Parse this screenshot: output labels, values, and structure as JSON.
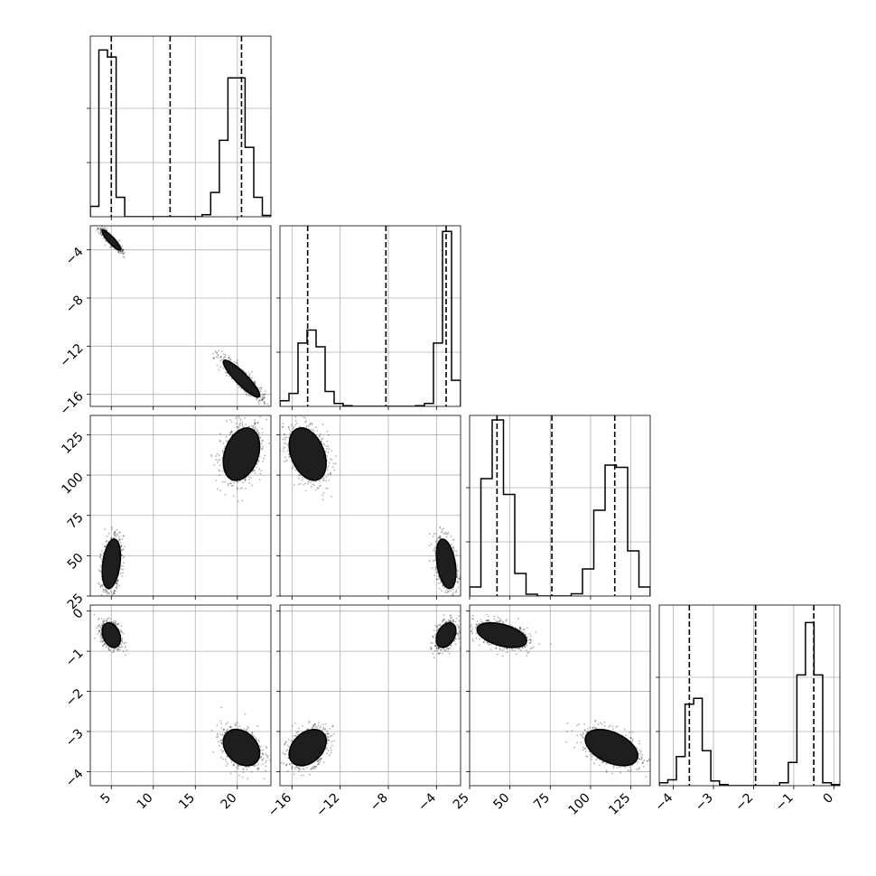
{
  "chart_data": {
    "type": "corner",
    "grid": true,
    "params": [
      {
        "range": [
          2.5,
          24.0
        ],
        "ticks": [
          5,
          10,
          15,
          20
        ],
        "tick_labels": [
          "5",
          "10",
          "15",
          "20"
        ],
        "quantiles": [
          5.0,
          12.0,
          20.5
        ],
        "hist": [
          0.15,
          2.4,
          2.3,
          0.28,
          0,
          0,
          0,
          0,
          0,
          0,
          0,
          0,
          0,
          0.03,
          0.35,
          1.1,
          2.0,
          2.0,
          1.0,
          0.28,
          0.02
        ],
        "hist_ylim": [
          0,
          2.6
        ]
      },
      {
        "range": [
          -17,
          -2.0
        ],
        "ticks": [
          -16,
          -12,
          -8,
          -4
        ],
        "tick_labels": [
          "−16",
          "−12",
          "−8",
          "−4"
        ],
        "quantiles": [
          -14.7,
          -8.2,
          -3.2
        ],
        "hist": [
          0.15,
          0.35,
          1.7,
          2.05,
          1.6,
          0.4,
          0.08,
          0.02,
          0,
          0,
          0,
          0,
          0,
          0,
          0,
          0.02,
          0.08,
          1.7,
          4.7,
          0.7
        ],
        "hist_ylim": [
          0,
          4.85
        ]
      },
      {
        "range": [
          25,
          137
        ],
        "ticks": [
          25,
          50,
          75,
          100,
          125
        ],
        "tick_labels": [
          "25",
          "50",
          "75",
          "100",
          "125"
        ],
        "quantiles": [
          42,
          76,
          115
        ],
        "hist": [
          0.2,
          2.6,
          3.9,
          2.25,
          0.5,
          0.04,
          0,
          0,
          0,
          0.05,
          0.6,
          1.9,
          2.9,
          2.85,
          1.0,
          0.2
        ],
        "hist_ylim": [
          0,
          4.0
        ]
      },
      {
        "range": [
          -4.35,
          0.15
        ],
        "ticks": [
          -4,
          -3,
          -2,
          -1,
          0
        ],
        "tick_labels": [
          "−4",
          "−3",
          "−2",
          "−1",
          "0"
        ],
        "quantiles": [
          -3.6,
          -1.95,
          -0.5
        ],
        "hist": [
          0.05,
          0.1,
          0.5,
          1.4,
          1.5,
          0.6,
          0.08,
          0.02,
          0,
          0,
          0,
          0,
          0,
          0,
          0.05,
          0.4,
          1.9,
          2.8,
          1.9,
          0.05,
          0.02
        ],
        "hist_ylim": [
          0,
          3.1
        ]
      }
    ],
    "modes": [
      {
        "mean": [
          5.0,
          -3.2,
          45,
          -0.6
        ],
        "sd": [
          0.6,
          0.45,
          8.5,
          0.17
        ]
      },
      {
        "mean": [
          20.5,
          -14.7,
          113,
          -3.4
        ],
        "sd": [
          1.2,
          0.85,
          9,
          0.25
        ]
      }
    ],
    "correlations": [
      [
        1.0,
        -0.9,
        0.3,
        -0.3
      ],
      [
        -0.9,
        1.0,
        -0.35,
        0.35
      ],
      [
        0.3,
        -0.35,
        1.0,
        -0.45
      ],
      [
        -0.3,
        0.35,
        -0.45,
        1.0
      ]
    ],
    "y_tick_labels": {
      "1": [
        "−16",
        "−12",
        "−8",
        "−4"
      ],
      "2": [
        "25",
        "50",
        "75",
        "100",
        "125"
      ],
      "3": [
        "−4",
        "−3",
        "−2",
        "−1",
        "0"
      ]
    },
    "contour_sigma_levels": [
      0.5,
      1.0,
      1.5
    ],
    "colors": {
      "line": "#000000",
      "grid": "#b0b0b0",
      "points": "#000000",
      "fill_light": "#ffffff",
      "fill_mid": "#9a9a9a",
      "fill_dark": "#1e1e1e"
    }
  }
}
